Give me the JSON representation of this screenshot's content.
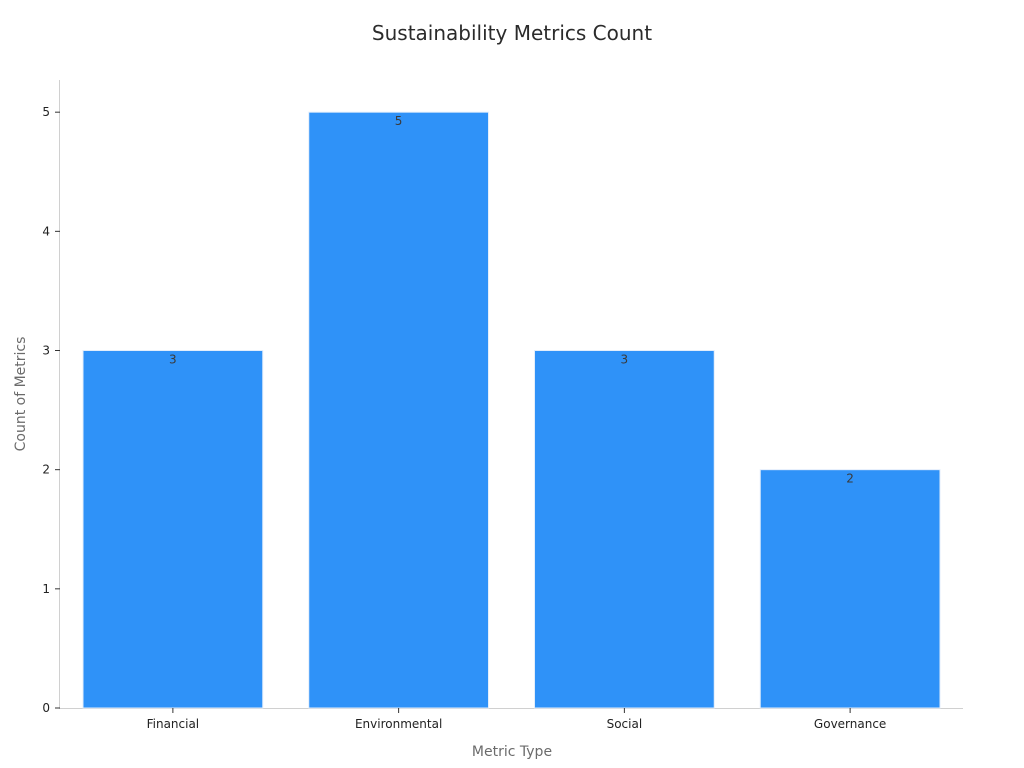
{
  "chart_data": {
    "type": "bar",
    "title": "Sustainability Metrics Count",
    "xlabel": "Metric Type",
    "ylabel": "Count of Metrics",
    "categories": [
      "Financial",
      "Environmental",
      "Social",
      "Governance"
    ],
    "values": [
      3,
      5,
      3,
      2
    ],
    "y_ticks": [
      0,
      1,
      2,
      3,
      4,
      5
    ],
    "ylim": [
      0,
      5.27
    ],
    "grid": false,
    "data_labels": true,
    "bar_color": "#2f92f8"
  }
}
